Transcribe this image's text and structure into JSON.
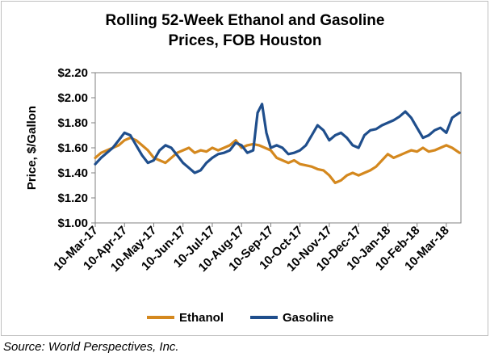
{
  "chart_data": {
    "type": "line",
    "title": [
      "Rolling 52-Week Ethanol and Gasoline",
      "Prices, FOB Houston"
    ],
    "ylabel": "Price, $/Gallon",
    "xlabel": "",
    "ylim": [
      1.0,
      2.2
    ],
    "yticks": [
      "$1.00",
      "$1.20",
      "$1.40",
      "$1.60",
      "$1.80",
      "$2.00",
      "$2.20"
    ],
    "xticks": [
      "10-Mar-17",
      "10-Apr-17",
      "10-May-17",
      "10-Jun-17",
      "10-Jul-17",
      "10-Aug-17",
      "10-Sep-17",
      "10-Oct-17",
      "10-Nov-17",
      "10-Dec-17",
      "10-Jan-18",
      "10-Feb-18",
      "10-Mar-18"
    ],
    "grid": false,
    "legend": "bottom",
    "series": [
      {
        "name": "Ethanol",
        "color": "#d4881e",
        "x": [
          0,
          0.2,
          0.4,
          0.6,
          0.8,
          1,
          1.2,
          1.4,
          1.6,
          1.8,
          2,
          2.2,
          2.4,
          2.6,
          2.8,
          3,
          3.2,
          3.4,
          3.6,
          3.8,
          4,
          4.2,
          4.4,
          4.6,
          4.8,
          5,
          5.2,
          5.4,
          5.6,
          5.8,
          6,
          6.2,
          6.4,
          6.6,
          6.8,
          7,
          7.2,
          7.4,
          7.6,
          7.8,
          8,
          8.2,
          8.4,
          8.6,
          8.8,
          9,
          9.2,
          9.4,
          9.6,
          9.8,
          10,
          10.2,
          10.4,
          10.6,
          10.8,
          11,
          11.2,
          11.4,
          11.6,
          11.8,
          12,
          12.2,
          12.45
        ],
        "values": [
          1.52,
          1.56,
          1.58,
          1.6,
          1.62,
          1.66,
          1.68,
          1.66,
          1.62,
          1.58,
          1.52,
          1.5,
          1.48,
          1.52,
          1.56,
          1.58,
          1.6,
          1.56,
          1.58,
          1.57,
          1.6,
          1.58,
          1.6,
          1.62,
          1.66,
          1.6,
          1.62,
          1.63,
          1.62,
          1.6,
          1.58,
          1.52,
          1.5,
          1.48,
          1.5,
          1.47,
          1.46,
          1.45,
          1.43,
          1.42,
          1.38,
          1.32,
          1.34,
          1.38,
          1.4,
          1.38,
          1.4,
          1.42,
          1.45,
          1.5,
          1.55,
          1.52,
          1.54,
          1.56,
          1.58,
          1.57,
          1.6,
          1.57,
          1.58,
          1.6,
          1.62,
          1.6,
          1.56
        ]
      },
      {
        "name": "Gasoline",
        "color": "#1f4e8c",
        "x": [
          0,
          0.2,
          0.4,
          0.6,
          0.8,
          1,
          1.2,
          1.4,
          1.6,
          1.8,
          2,
          2.2,
          2.4,
          2.6,
          2.8,
          3,
          3.2,
          3.4,
          3.6,
          3.8,
          4,
          4.2,
          4.4,
          4.6,
          4.8,
          5,
          5.2,
          5.4,
          5.55,
          5.7,
          5.85,
          6,
          6.2,
          6.4,
          6.6,
          6.8,
          7,
          7.2,
          7.4,
          7.6,
          7.8,
          8,
          8.2,
          8.4,
          8.6,
          8.8,
          9,
          9.2,
          9.4,
          9.6,
          9.8,
          10,
          10.2,
          10.4,
          10.6,
          10.8,
          11,
          11.2,
          11.4,
          11.6,
          11.8,
          12,
          12.2,
          12.45
        ],
        "values": [
          1.47,
          1.52,
          1.56,
          1.6,
          1.66,
          1.72,
          1.7,
          1.62,
          1.54,
          1.48,
          1.5,
          1.58,
          1.62,
          1.6,
          1.54,
          1.48,
          1.44,
          1.4,
          1.42,
          1.48,
          1.52,
          1.55,
          1.56,
          1.58,
          1.64,
          1.62,
          1.56,
          1.58,
          1.88,
          1.95,
          1.72,
          1.6,
          1.62,
          1.6,
          1.55,
          1.56,
          1.58,
          1.62,
          1.7,
          1.78,
          1.74,
          1.66,
          1.7,
          1.72,
          1.68,
          1.62,
          1.6,
          1.7,
          1.74,
          1.75,
          1.78,
          1.8,
          1.82,
          1.85,
          1.89,
          1.84,
          1.76,
          1.68,
          1.7,
          1.74,
          1.76,
          1.72,
          1.84,
          1.88
        ]
      }
    ]
  },
  "source": "Source: World Perspectives, Inc."
}
